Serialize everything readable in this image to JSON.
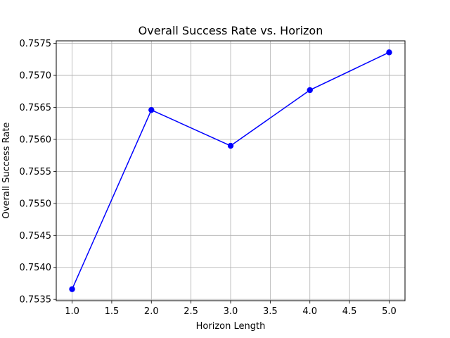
{
  "chart_data": {
    "type": "line",
    "title": "Overall Success Rate vs. Horizon",
    "xlabel": "Horizon Length",
    "ylabel": "Overall Success Rate",
    "x": [
      1.0,
      2.0,
      3.0,
      4.0,
      5.0
    ],
    "series": [
      {
        "values": [
          0.75366,
          0.75646,
          0.7559,
          0.75677,
          0.75736
        ],
        "color": "#0000ff",
        "marker": "circle"
      }
    ],
    "xlim": [
      0.8,
      5.2
    ],
    "ylim": [
      0.75348,
      0.75754
    ],
    "xticks": [
      1.0,
      1.5,
      2.0,
      2.5,
      3.0,
      3.5,
      4.0,
      4.5,
      5.0
    ],
    "xtick_labels": [
      "1.0",
      "1.5",
      "2.0",
      "2.5",
      "3.0",
      "3.5",
      "4.0",
      "4.5",
      "5.0"
    ],
    "yticks": [
      0.7535,
      0.754,
      0.7545,
      0.755,
      0.7555,
      0.756,
      0.7565,
      0.757,
      0.7575
    ],
    "ytick_labels": [
      "0.7535",
      "0.7540",
      "0.7545",
      "0.7550",
      "0.7555",
      "0.7560",
      "0.7565",
      "0.7570",
      "0.7575"
    ],
    "grid": true,
    "legend": "none"
  }
}
